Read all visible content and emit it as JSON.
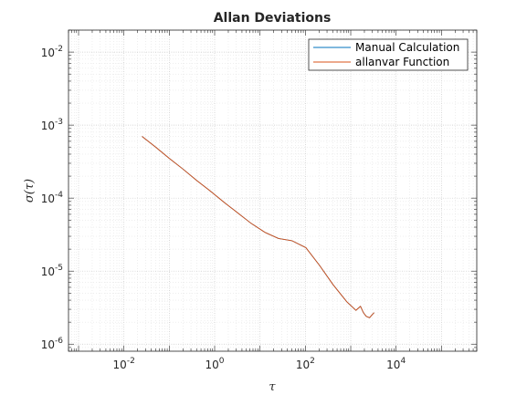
{
  "chart_data": {
    "type": "line",
    "title": "Allan Deviations",
    "xlabel": "τ",
    "ylabel": "σ(τ)",
    "xscale": "log",
    "yscale": "log",
    "xlim": [
      0.0006,
      600000
    ],
    "ylim": [
      8e-07,
      0.02
    ],
    "grid": "on (major and minor, dotted)",
    "legend_position": "top-right",
    "x_ticks": [
      {
        "value": 0.01,
        "base": "10",
        "exp": "-2"
      },
      {
        "value": 1,
        "base": "10",
        "exp": "0"
      },
      {
        "value": 100,
        "base": "10",
        "exp": "2"
      },
      {
        "value": 10000,
        "base": "10",
        "exp": "4"
      }
    ],
    "y_ticks": [
      {
        "value": 1e-06,
        "base": "10",
        "exp": "-6"
      },
      {
        "value": 1e-05,
        "base": "10",
        "exp": "-5"
      },
      {
        "value": 0.0001,
        "base": "10",
        "exp": "-4"
      },
      {
        "value": 0.001,
        "base": "10",
        "exp": "-3"
      },
      {
        "value": 0.01,
        "base": "10",
        "exp": "-2"
      }
    ],
    "series": [
      {
        "name": "Manual Calculation",
        "color": "#0072bd",
        "x": [
          0.025,
          0.05,
          0.1,
          0.2,
          0.4,
          0.8,
          1.6,
          3.2,
          6.4,
          12.8,
          25.6,
          51.2,
          102.4,
          204.8,
          409.6,
          819.2,
          1300,
          1638,
          1900,
          2200,
          2600,
          3000,
          3276.8
        ],
        "y": [
          0.0007,
          0.0005,
          0.00035,
          0.00025,
          0.000175,
          0.000125,
          8.8e-05,
          6.3e-05,
          4.5e-05,
          3.4e-05,
          2.8e-05,
          2.6e-05,
          2.1e-05,
          1.2e-05,
          6.5e-06,
          3.8e-06,
          2.9e-06,
          3.3e-06,
          2.7e-06,
          2.4e-06,
          2.3e-06,
          2.55e-06,
          2.7e-06
        ]
      },
      {
        "name": "allanvar Function",
        "color": "#d95319",
        "x": [
          0.025,
          0.05,
          0.1,
          0.2,
          0.4,
          0.8,
          1.6,
          3.2,
          6.4,
          12.8,
          25.6,
          51.2,
          102.4,
          204.8,
          409.6,
          819.2,
          1300,
          1638,
          1900,
          2200,
          2600,
          3000,
          3276.8
        ],
        "y": [
          0.0007,
          0.0005,
          0.00035,
          0.00025,
          0.000175,
          0.000125,
          8.8e-05,
          6.3e-05,
          4.5e-05,
          3.4e-05,
          2.8e-05,
          2.6e-05,
          2.1e-05,
          1.2e-05,
          6.5e-06,
          3.8e-06,
          2.9e-06,
          3.3e-06,
          2.7e-06,
          2.4e-06,
          2.3e-06,
          2.55e-06,
          2.7e-06
        ]
      }
    ]
  }
}
